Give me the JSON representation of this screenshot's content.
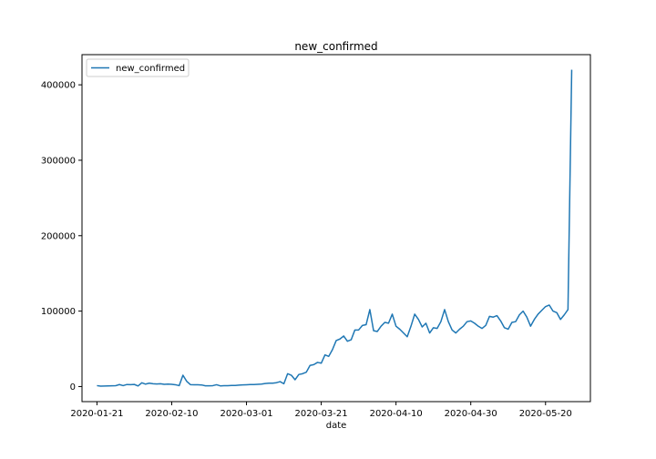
{
  "chart_data": {
    "type": "line",
    "title": "new_confirmed",
    "xlabel": "date",
    "ylabel": "",
    "start_date": "2020-01-21",
    "xlim": [
      "2020-01-17",
      "2020-06-01"
    ],
    "ylim": [
      -20000,
      440000
    ],
    "x_ticks": [
      "2020-01-21",
      "2020-02-10",
      "2020-03-01",
      "2020-03-21",
      "2020-04-10",
      "2020-04-30",
      "2020-05-20"
    ],
    "y_ticks": [
      0,
      100000,
      200000,
      300000,
      400000
    ],
    "y_tick_labels": [
      "0",
      "100000",
      "200000",
      "300000",
      "400000"
    ],
    "legend": {
      "position": "top-left",
      "entries": [
        "new_confirmed"
      ]
    },
    "grid": false,
    "series": [
      {
        "name": "new_confirmed",
        "color": "#1f77b4",
        "values": [
          1200,
          500,
          700,
          900,
          1000,
          1100,
          2600,
          1200,
          2700,
          2500,
          2800,
          800,
          5000,
          3200,
          4400,
          3700,
          3400,
          3700,
          3000,
          3300,
          2900,
          2400,
          1200,
          15000,
          7000,
          2500,
          2300,
          2400,
          2100,
          1000,
          1000,
          1200,
          2400,
          900,
          1100,
          1200,
          1400,
          1500,
          1900,
          2200,
          2400,
          2700,
          2600,
          3000,
          3300,
          4000,
          4400,
          4400,
          5100,
          6500,
          3700,
          17000,
          15000,
          9000,
          16000,
          17000,
          19000,
          28000,
          29000,
          32000,
          31000,
          42000,
          40000,
          49000,
          61000,
          63000,
          67000,
          60000,
          62000,
          75000,
          75000,
          81000,
          82000,
          102000,
          74000,
          73000,
          80000,
          85000,
          84000,
          96000,
          80000,
          76000,
          71000,
          66000,
          80000,
          96000,
          89000,
          79000,
          84000,
          71000,
          78000,
          77000,
          86000,
          102000,
          86000,
          75000,
          71000,
          76000,
          80000,
          86000,
          87000,
          84000,
          80000,
          77000,
          81000,
          93000,
          92000,
          94000,
          87000,
          78000,
          76000,
          85000,
          86000,
          95000,
          100000,
          92000,
          80000,
          89000,
          96000,
          101000,
          106000,
          108000,
          100000,
          98000,
          89000,
          95000,
          102000,
          420000
        ]
      }
    ]
  }
}
